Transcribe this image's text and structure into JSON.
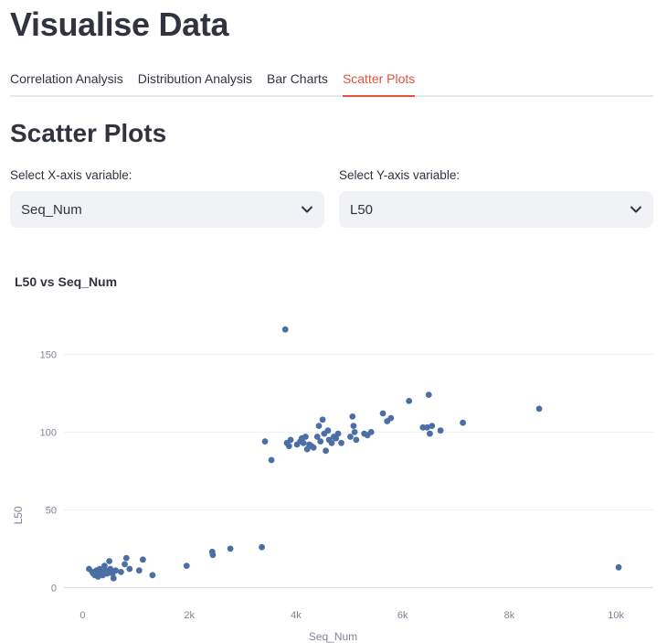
{
  "header": {
    "title": "Visualise Data"
  },
  "tabs": [
    {
      "label": "Correlation Analysis",
      "active": false
    },
    {
      "label": "Distribution Analysis",
      "active": false
    },
    {
      "label": "Bar Charts",
      "active": false
    },
    {
      "label": "Scatter Plots",
      "active": true
    }
  ],
  "section": {
    "title": "Scatter Plots"
  },
  "controls": {
    "x_label": "Select X-axis variable:",
    "x_value": "Seq_Num",
    "y_label": "Select Y-axis variable:",
    "y_value": "L50",
    "chevron_icon": "chevron-down-icon"
  },
  "colors": {
    "accent": "#e0543f",
    "point": "#4b6fa5",
    "select_bg": "#f0f2f6"
  },
  "chart_data": {
    "type": "scatter",
    "title": "L50 vs Seq_Num",
    "xlabel": "Seq_Num",
    "ylabel": "L50",
    "xlim": [
      -350,
      10700
    ],
    "ylim": [
      -8,
      172
    ],
    "x_ticks": [
      0,
      2000,
      4000,
      6000,
      8000,
      10000
    ],
    "x_tick_labels": [
      "0",
      "2k",
      "4k",
      "6k",
      "8k",
      "10k"
    ],
    "y_ticks": [
      0,
      50,
      100,
      150
    ],
    "y_tick_labels": [
      "0",
      "50",
      "100",
      "150"
    ],
    "grid": true,
    "points": [
      [
        120,
        12
      ],
      [
        180,
        10
      ],
      [
        200,
        9
      ],
      [
        230,
        8
      ],
      [
        260,
        11
      ],
      [
        290,
        7
      ],
      [
        320,
        12
      ],
      [
        340,
        9
      ],
      [
        360,
        10
      ],
      [
        380,
        8
      ],
      [
        410,
        14
      ],
      [
        430,
        11
      ],
      [
        460,
        9
      ],
      [
        480,
        10
      ],
      [
        500,
        17
      ],
      [
        520,
        12
      ],
      [
        540,
        10
      ],
      [
        560,
        9
      ],
      [
        580,
        6
      ],
      [
        620,
        11
      ],
      [
        720,
        10
      ],
      [
        790,
        15
      ],
      [
        820,
        19
      ],
      [
        880,
        12
      ],
      [
        1060,
        11
      ],
      [
        1130,
        18
      ],
      [
        1310,
        8
      ],
      [
        1950,
        14
      ],
      [
        2430,
        23
      ],
      [
        2440,
        21
      ],
      [
        2770,
        25
      ],
      [
        3360,
        26
      ],
      [
        3420,
        94
      ],
      [
        3540,
        82
      ],
      [
        3800,
        166
      ],
      [
        3830,
        93
      ],
      [
        3870,
        91
      ],
      [
        3900,
        95
      ],
      [
        4020,
        92
      ],
      [
        4080,
        94
      ],
      [
        4110,
        96
      ],
      [
        4140,
        93
      ],
      [
        4180,
        97
      ],
      [
        4210,
        89
      ],
      [
        4250,
        92
      ],
      [
        4290,
        91
      ],
      [
        4330,
        90
      ],
      [
        4400,
        97
      ],
      [
        4430,
        104
      ],
      [
        4460,
        94
      ],
      [
        4500,
        108
      ],
      [
        4530,
        99
      ],
      [
        4560,
        88
      ],
      [
        4600,
        101
      ],
      [
        4620,
        95
      ],
      [
        4670,
        93
      ],
      [
        4710,
        97
      ],
      [
        4750,
        96
      ],
      [
        4790,
        99
      ],
      [
        4850,
        93
      ],
      [
        5020,
        97
      ],
      [
        5060,
        110
      ],
      [
        5080,
        104
      ],
      [
        5100,
        100
      ],
      [
        5130,
        95
      ],
      [
        5280,
        99
      ],
      [
        5340,
        98
      ],
      [
        5410,
        100
      ],
      [
        5630,
        112
      ],
      [
        5710,
        107
      ],
      [
        5780,
        109
      ],
      [
        6120,
        120
      ],
      [
        6380,
        103
      ],
      [
        6460,
        103
      ],
      [
        6490,
        124
      ],
      [
        6510,
        99
      ],
      [
        6550,
        104
      ],
      [
        6710,
        101
      ],
      [
        7130,
        106
      ],
      [
        8560,
        115
      ],
      [
        10050,
        13
      ]
    ]
  }
}
